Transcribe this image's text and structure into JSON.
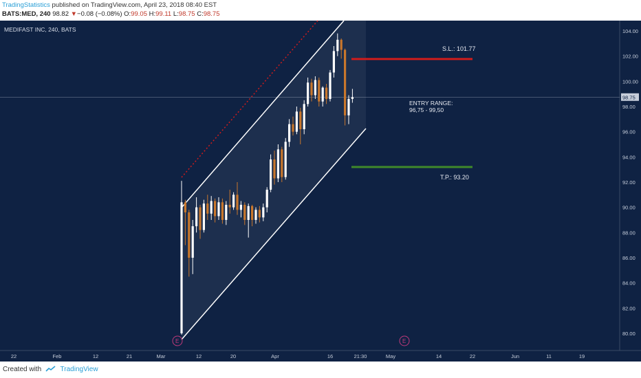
{
  "header": {
    "author": "TradingStatistics",
    "published_text": "published on TradingView.com, April 23, 2018 08:40 EST",
    "symbol": "BATS:MED, 240",
    "last": "98.82",
    "change_arrow": "▼",
    "change": "−0.08 (−0.08%)",
    "open_label": "O:",
    "open": "99.05",
    "high_label": "H:",
    "high": "99.11",
    "low_label": "L:",
    "low": "98.75",
    "close_label": "C:",
    "close": "98.75"
  },
  "footer": {
    "created_with": "Created with",
    "brand": "TradingView"
  },
  "colors": {
    "background": "#0f2243",
    "up_candle": "#ffffff",
    "down_candle": "#c9772c",
    "stop_loss": "#d01c1c",
    "take_profit": "#3f8a2a",
    "channel": "#ffffff",
    "channel_dotted": "#d01c1c",
    "event_marker": "#c0397b"
  },
  "chart_data": {
    "type": "candlestick",
    "title": "MEDIFAST INC, 240, BATS",
    "ylim": [
      79.2,
      104.8
    ],
    "y_ticks": [
      "80.00",
      "82.00",
      "84.00",
      "86.00",
      "88.00",
      "90.00",
      "92.00",
      "94.00",
      "96.00",
      "98.00",
      "100.00",
      "102.00",
      "104.00"
    ],
    "x_ticks": [
      "22",
      "Feb",
      "12",
      "21",
      "Mar",
      "12",
      "20",
      "Apr",
      "16",
      "21:30",
      "May",
      "14",
      "22",
      "Jun",
      "11",
      "19"
    ],
    "current_price_label": "98.75",
    "event_label": "E",
    "annotations": {
      "stop_loss_text": "S.L.: 101.77",
      "stop_loss_value": 101.77,
      "take_profit_text": "T.P.: 93.20",
      "take_profit_value": 93.2,
      "entry_title": "ENTRY RANGE:",
      "entry_range": "96,75 - 99,50"
    },
    "candles": [
      {
        "o": 80.0,
        "h": 92.1,
        "l": 79.9,
        "c": 90.4
      },
      {
        "o": 90.4,
        "h": 90.6,
        "l": 87.0,
        "c": 89.6
      },
      {
        "o": 89.6,
        "h": 89.8,
        "l": 84.5,
        "c": 86.0
      },
      {
        "o": 86.0,
        "h": 89.0,
        "l": 84.7,
        "c": 88.5
      },
      {
        "o": 88.5,
        "h": 90.8,
        "l": 88.0,
        "c": 90.0
      },
      {
        "o": 90.0,
        "h": 90.2,
        "l": 87.5,
        "c": 88.2
      },
      {
        "o": 88.2,
        "h": 90.6,
        "l": 88.0,
        "c": 90.3
      },
      {
        "o": 90.3,
        "h": 91.0,
        "l": 89.0,
        "c": 89.5
      },
      {
        "o": 89.5,
        "h": 90.9,
        "l": 89.0,
        "c": 90.5
      },
      {
        "o": 90.5,
        "h": 90.7,
        "l": 88.8,
        "c": 89.3
      },
      {
        "o": 89.3,
        "h": 90.8,
        "l": 89.0,
        "c": 90.4
      },
      {
        "o": 90.4,
        "h": 90.7,
        "l": 88.7,
        "c": 89.0
      },
      {
        "o": 89.0,
        "h": 90.5,
        "l": 88.6,
        "c": 90.2
      },
      {
        "o": 90.2,
        "h": 91.4,
        "l": 89.5,
        "c": 90.0
      },
      {
        "o": 90.0,
        "h": 91.2,
        "l": 89.8,
        "c": 91.0
      },
      {
        "o": 91.0,
        "h": 92.0,
        "l": 89.4,
        "c": 89.8
      },
      {
        "o": 89.8,
        "h": 90.5,
        "l": 89.2,
        "c": 90.2
      },
      {
        "o": 90.2,
        "h": 90.4,
        "l": 88.6,
        "c": 89.0
      },
      {
        "o": 89.0,
        "h": 90.3,
        "l": 87.6,
        "c": 90.1
      },
      {
        "o": 90.1,
        "h": 90.2,
        "l": 88.5,
        "c": 89.0
      },
      {
        "o": 89.0,
        "h": 90.0,
        "l": 88.7,
        "c": 89.8
      },
      {
        "o": 89.8,
        "h": 90.1,
        "l": 88.8,
        "c": 89.2
      },
      {
        "o": 89.2,
        "h": 90.3,
        "l": 88.9,
        "c": 90.0
      },
      {
        "o": 90.0,
        "h": 91.6,
        "l": 89.6,
        "c": 91.4
      },
      {
        "o": 91.4,
        "h": 94.2,
        "l": 91.2,
        "c": 93.8
      },
      {
        "o": 93.8,
        "h": 94.5,
        "l": 91.8,
        "c": 92.3
      },
      {
        "o": 92.3,
        "h": 95.0,
        "l": 92.0,
        "c": 94.6
      },
      {
        "o": 94.6,
        "h": 94.8,
        "l": 92.0,
        "c": 92.4
      },
      {
        "o": 92.4,
        "h": 95.5,
        "l": 92.2,
        "c": 95.2
      },
      {
        "o": 95.2,
        "h": 97.0,
        "l": 94.8,
        "c": 96.6
      },
      {
        "o": 96.6,
        "h": 97.2,
        "l": 95.7,
        "c": 96.0
      },
      {
        "o": 96.0,
        "h": 98.0,
        "l": 95.8,
        "c": 97.6
      },
      {
        "o": 97.6,
        "h": 97.9,
        "l": 95.0,
        "c": 96.2
      },
      {
        "o": 96.2,
        "h": 98.5,
        "l": 95.8,
        "c": 98.2
      },
      {
        "o": 98.2,
        "h": 100.3,
        "l": 98.0,
        "c": 99.9
      },
      {
        "o": 99.9,
        "h": 100.2,
        "l": 98.4,
        "c": 98.9
      },
      {
        "o": 98.9,
        "h": 100.4,
        "l": 98.6,
        "c": 100.1
      },
      {
        "o": 100.1,
        "h": 100.3,
        "l": 98.0,
        "c": 98.4
      },
      {
        "o": 98.4,
        "h": 99.6,
        "l": 98.0,
        "c": 99.5
      },
      {
        "o": 99.5,
        "h": 99.8,
        "l": 98.2,
        "c": 98.6
      },
      {
        "o": 98.6,
        "h": 100.9,
        "l": 98.4,
        "c": 100.7
      },
      {
        "o": 100.7,
        "h": 102.8,
        "l": 100.3,
        "c": 102.4
      },
      {
        "o": 102.4,
        "h": 103.8,
        "l": 102.0,
        "c": 103.3
      },
      {
        "o": 103.3,
        "h": 103.4,
        "l": 101.8,
        "c": 102.5
      },
      {
        "o": 102.5,
        "h": 102.6,
        "l": 96.5,
        "c": 97.3
      },
      {
        "o": 97.3,
        "h": 98.9,
        "l": 96.6,
        "c": 98.6
      },
      {
        "o": 98.6,
        "h": 99.4,
        "l": 98.3,
        "c": 98.75
      }
    ]
  }
}
